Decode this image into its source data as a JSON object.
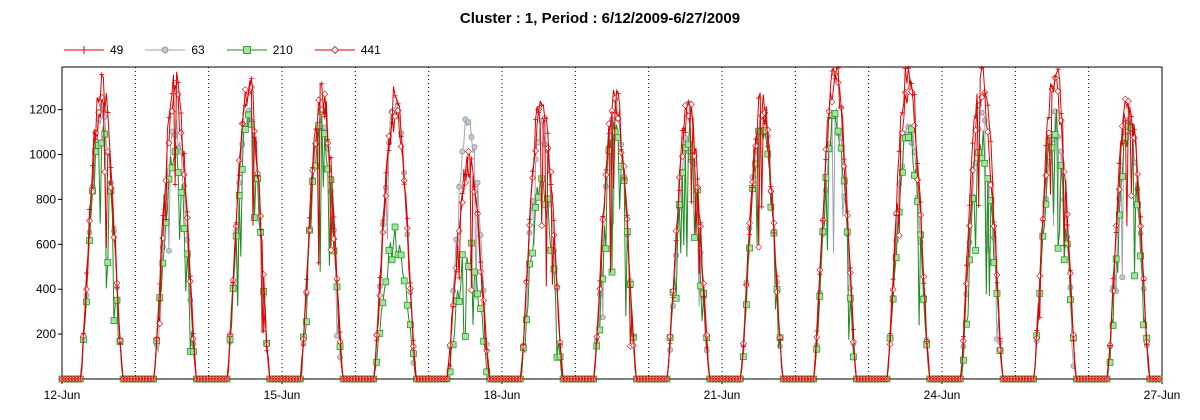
{
  "chart_data": {
    "type": "line",
    "title": "Cluster : 1, Period : 6/12/2009-6/27/2009",
    "xlabel": "",
    "ylabel": "",
    "x_ticks": [
      "12-Jun",
      "15-Jun",
      "18-Jun",
      "21-Jun",
      "24-Jun",
      "27-Jun"
    ],
    "y_ticks": [
      200,
      400,
      600,
      800,
      1000,
      1200
    ],
    "ylim": [
      0,
      1390
    ],
    "xlim": [
      "2009-06-12",
      "2009-06-27"
    ],
    "grid": {
      "vertical_dotted_daily": true,
      "horizontal": false
    },
    "legend_position": "top-left",
    "series": [
      {
        "name": "49",
        "color": "#e00000",
        "marker": "plus",
        "daily_peak": [
          1300,
          1310,
          1310,
          1270,
          1240,
          980,
          1250,
          1250,
          1200,
          1230,
          1380,
          1380,
          1380,
          1360,
          1240
        ]
      },
      {
        "name": "63",
        "color": "#9ca4ac",
        "marker": "circle",
        "daily_peak": [
          1170,
          1120,
          1200,
          1160,
          1230,
          1140,
          1130,
          1200,
          1060,
          1200,
          1170,
          1140,
          1160,
          1160,
          1160
        ]
      },
      {
        "name": "210",
        "color": "#1e8c1e",
        "marker": "square",
        "daily_peak": [
          1110,
          1000,
          1150,
          1140,
          620,
          560,
          850,
          1160,
          1080,
          1100,
          1150,
          1100,
          1060,
          1140,
          1090
        ]
      },
      {
        "name": "441",
        "color": "#e00000",
        "marker": "diamond",
        "daily_peak": [
          1230,
          1250,
          1290,
          1240,
          1180,
          960,
          1200,
          1230,
          1200,
          1230,
          1330,
          1290,
          1260,
          1280,
          1230
        ]
      }
    ],
    "daylight_hours": [
      6,
      20
    ]
  }
}
